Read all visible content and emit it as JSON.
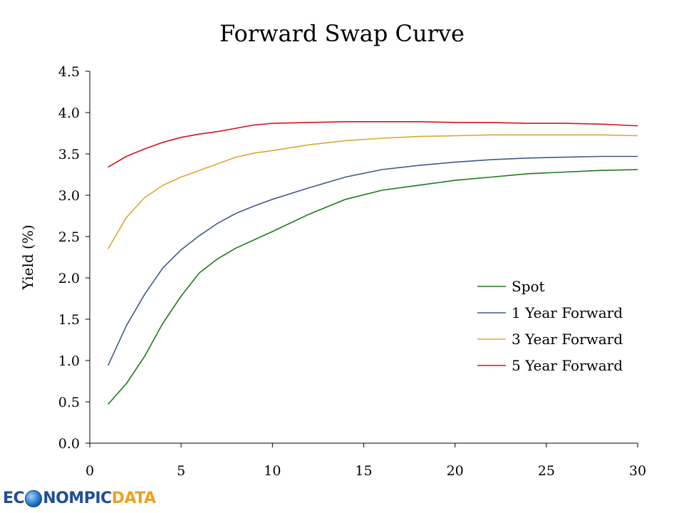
{
  "chart_data": {
    "type": "line",
    "title": "Forward Swap Curve",
    "xlabel": "",
    "ylabel": "Yield (%)",
    "xlim": [
      0,
      30
    ],
    "ylim": [
      0.0,
      4.5
    ],
    "xticks": [
      0,
      5,
      10,
      15,
      20,
      25,
      30
    ],
    "xtick_labels": [
      "0",
      "5",
      "10",
      "15",
      "20",
      "25",
      "30"
    ],
    "yticks": [
      0.0,
      0.5,
      1.0,
      1.5,
      2.0,
      2.5,
      3.0,
      3.5,
      4.0,
      4.5
    ],
    "ytick_labels": [
      "0.0",
      "0.5",
      "1.0",
      "1.5",
      "2.0",
      "2.5",
      "3.0",
      "3.5",
      "4.0",
      "4.5"
    ],
    "grid": false,
    "legend_position": "center-right",
    "x": [
      1,
      2,
      3,
      4,
      5,
      6,
      7,
      8,
      9,
      10,
      12,
      14,
      16,
      18,
      20,
      22,
      24,
      26,
      28,
      30
    ],
    "series": [
      {
        "name": "Spot",
        "color": "#1a7a1a",
        "values": [
          0.47,
          0.72,
          1.05,
          1.45,
          1.78,
          2.06,
          2.23,
          2.36,
          2.46,
          2.56,
          2.77,
          2.95,
          3.06,
          3.12,
          3.18,
          3.22,
          3.26,
          3.28,
          3.3,
          3.31
        ]
      },
      {
        "name": "1 Year Forward",
        "color": "#3f5a8a",
        "values": [
          0.94,
          1.42,
          1.8,
          2.12,
          2.34,
          2.51,
          2.66,
          2.78,
          2.87,
          2.95,
          3.09,
          3.22,
          3.31,
          3.36,
          3.4,
          3.43,
          3.45,
          3.46,
          3.47,
          3.47
        ]
      },
      {
        "name": "3 Year Forward",
        "color": "#d9a830",
        "values": [
          2.35,
          2.73,
          2.97,
          3.12,
          3.22,
          3.3,
          3.38,
          3.46,
          3.51,
          3.54,
          3.61,
          3.66,
          3.69,
          3.71,
          3.72,
          3.73,
          3.73,
          3.73,
          3.73,
          3.72
        ]
      },
      {
        "name": "5 Year Forward",
        "color": "#d8111a",
        "values": [
          3.34,
          3.47,
          3.56,
          3.64,
          3.7,
          3.74,
          3.77,
          3.81,
          3.85,
          3.87,
          3.88,
          3.89,
          3.89,
          3.89,
          3.88,
          3.88,
          3.87,
          3.87,
          3.86,
          3.84
        ]
      }
    ]
  },
  "brand": {
    "part1": "EC",
    "part2": "NOMPIC",
    "part3": "DATA"
  }
}
